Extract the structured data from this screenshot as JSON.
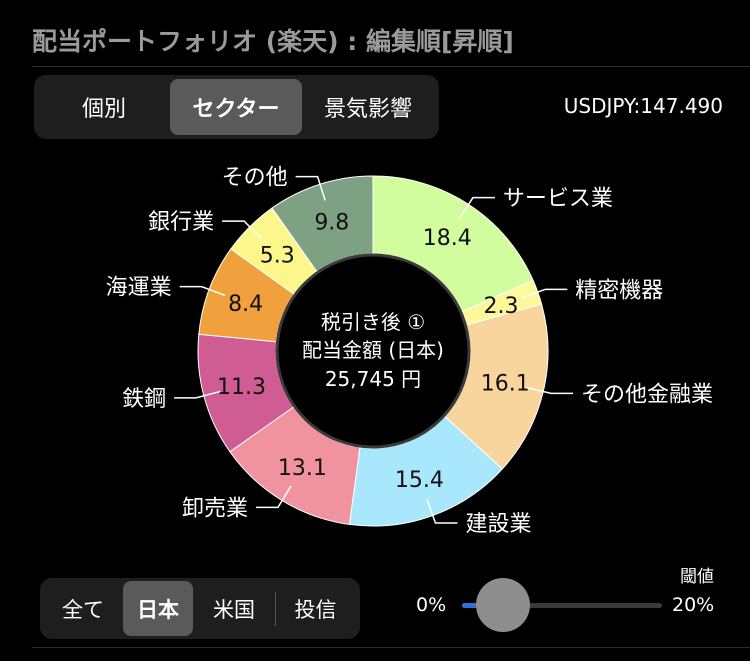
{
  "title": "配当ポートフォリオ (楽天) : 編集順[昇順]",
  "tabs": [
    {
      "label": "個別",
      "active": false
    },
    {
      "label": "セクター",
      "active": true
    },
    {
      "label": "景気影響",
      "active": false
    }
  ],
  "fx_rate": "USDJPY:147.490",
  "center": {
    "line1": "税引き後 ①",
    "line2": "配当金額 (日本)",
    "line3": "25,745 円"
  },
  "chart_data": {
    "type": "pie",
    "donut": true,
    "clockwise_from_top": true,
    "unit": "%",
    "slices": [
      {
        "label": "サービス業",
        "value": 18.4,
        "color": "#d2fd9e"
      },
      {
        "label": "精密機器",
        "value": 2.3,
        "color": "#fdf89a"
      },
      {
        "label": "その他金融業",
        "value": 16.1,
        "color": "#f9d59e"
      },
      {
        "label": "建設業",
        "value": 15.4,
        "color": "#a9e7fd"
      },
      {
        "label": "卸売業",
        "value": 13.1,
        "color": "#f1939e"
      },
      {
        "label": "鉄鋼",
        "value": 11.3,
        "color": "#cf5c93"
      },
      {
        "label": "海運業",
        "value": 8.4,
        "color": "#f0a03d"
      },
      {
        "label": "銀行業",
        "value": 5.3,
        "color": "#fdf78b"
      },
      {
        "label": "その他",
        "value": 9.8,
        "color": "#7ea183"
      }
    ]
  },
  "filters": [
    {
      "label": "全て",
      "active": false
    },
    {
      "label": "日本",
      "active": true
    },
    {
      "label": "米国",
      "active": false
    },
    {
      "label": "投信",
      "active": false
    }
  ],
  "slider": {
    "label": "閾値",
    "min_label": "0%",
    "max_label": "20%",
    "value_percent": 2
  }
}
